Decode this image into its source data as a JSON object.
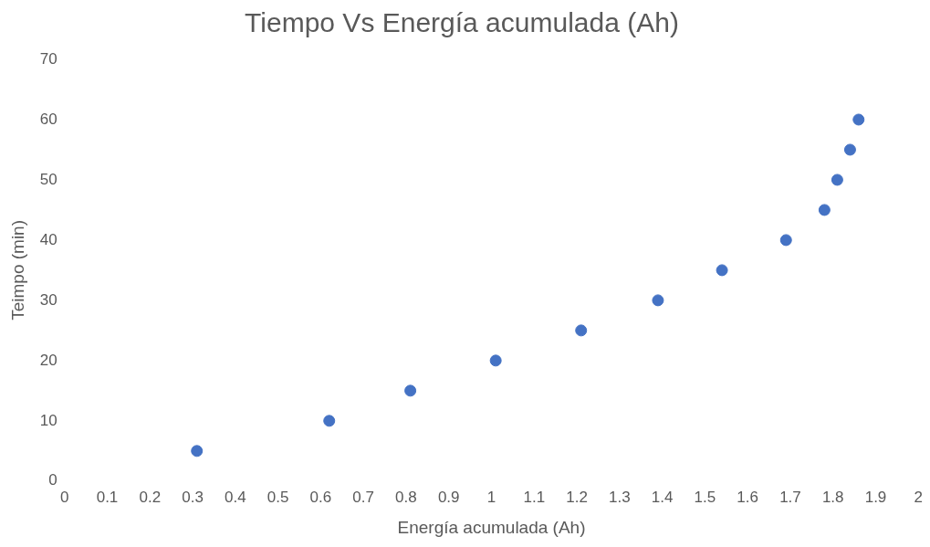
{
  "chart_data": {
    "type": "scatter",
    "title": "Tiempo Vs Energía acumulada (Ah)",
    "xlabel": "Energía acumulada (Ah)",
    "ylabel": "Teimpo (min)",
    "x": [
      0.31,
      0.62,
      0.81,
      1.01,
      1.21,
      1.39,
      1.54,
      1.69,
      1.78,
      1.81,
      1.84,
      1.86
    ],
    "series": [
      {
        "color": "#4472c4",
        "values": [
          5,
          10,
          15,
          20,
          25,
          30,
          35,
          40,
          45,
          50,
          55,
          60
        ]
      }
    ],
    "xlim": [
      0,
      2
    ],
    "xticks": [
      0,
      0.1,
      0.2,
      0.3,
      0.4,
      0.5,
      0.6,
      0.7,
      0.8,
      0.9,
      1,
      1.1,
      1.2,
      1.3,
      1.4,
      1.5,
      1.6,
      1.7,
      1.8,
      1.9,
      2
    ],
    "ylim": [
      0,
      70
    ],
    "yticks": [
      0,
      10,
      20,
      30,
      40,
      50,
      60,
      70
    ],
    "grid": false,
    "legend": false,
    "marker": "circle"
  }
}
